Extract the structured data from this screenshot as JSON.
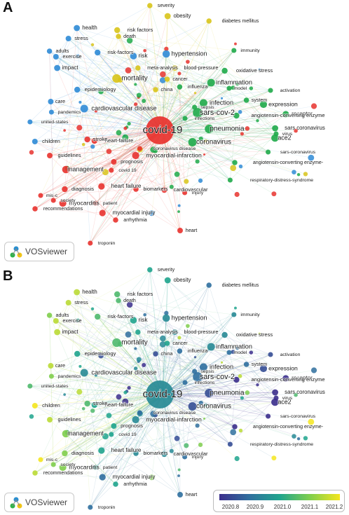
{
  "panels": [
    {
      "letter": "A",
      "mode": "cluster"
    },
    {
      "letter": "B",
      "mode": "overlay"
    }
  ],
  "brand": {
    "label": "VOSviewer"
  },
  "colorbar": {
    "ticks": [
      "2020.8",
      "2020.9",
      "2021.0",
      "2021.1",
      "2021.2"
    ],
    "stops": [
      "#3b2e8c",
      "#2f6f9e",
      "#1fa48d",
      "#7fce4d",
      "#f4e61e"
    ]
  },
  "clusters": {
    "red": "#e8322e",
    "green": "#1faa4a",
    "blue": "#2f8bd6",
    "yellow": "#d8c41a"
  },
  "keywords": [
    {
      "label": "covid-19",
      "cluster": "red",
      "year": 2020.95,
      "w": 3.0
    },
    {
      "label": "sars-cov-2",
      "cluster": "green",
      "year": 2020.9,
      "w": 2.2
    },
    {
      "label": "mortality",
      "cluster": "yellow",
      "year": 2021.05,
      "w": 1.9
    },
    {
      "label": "pneumonia",
      "cluster": "green",
      "year": 2020.85,
      "w": 1.9
    },
    {
      "label": "coronavirus",
      "cluster": "green",
      "year": 2020.85,
      "w": 1.8
    },
    {
      "label": "inflammation",
      "cluster": "green",
      "year": 2020.95,
      "w": 1.6
    },
    {
      "label": "infection",
      "cluster": "green",
      "year": 2020.9,
      "w": 1.6
    },
    {
      "label": "cardiovascular disease",
      "cluster": "blue",
      "year": 2020.95,
      "w": 1.6
    },
    {
      "label": "management",
      "cluster": "red",
      "year": 2021.1,
      "w": 1.5
    },
    {
      "label": "ace2",
      "cluster": "green",
      "year": 2020.8,
      "w": 1.5
    },
    {
      "label": "hypertension",
      "cluster": "blue",
      "year": 2020.95,
      "w": 1.5
    },
    {
      "label": "expression",
      "cluster": "green",
      "year": 2020.85,
      "w": 1.4
    },
    {
      "label": "myocarditis",
      "cluster": "red",
      "year": 2021.1,
      "w": 1.4
    },
    {
      "label": "myocardial-infarction",
      "cluster": "red",
      "year": 2020.95,
      "w": 1.4
    },
    {
      "label": "risk",
      "cluster": "blue",
      "year": 2021.0,
      "w": 1.3
    },
    {
      "label": "heart failure",
      "cluster": "red",
      "year": 2021.0,
      "w": 1.2
    },
    {
      "label": "myocardial injury",
      "cluster": "red",
      "year": 2020.9,
      "w": 1.2
    },
    {
      "label": "receptor",
      "cluster": "green",
      "year": 2020.8,
      "w": 1.2
    },
    {
      "label": "health",
      "cluster": "blue",
      "year": 2021.15,
      "w": 1.1
    },
    {
      "label": "obesity",
      "cluster": "yellow",
      "year": 2021.0,
      "w": 1.1
    },
    {
      "label": "sars coronavirus",
      "cluster": "green",
      "year": 2020.8,
      "w": 1.1
    },
    {
      "label": "impact",
      "cluster": "blue",
      "year": 2021.15,
      "w": 1.1
    },
    {
      "label": "heart-failure",
      "cluster": "red",
      "year": 2021.0,
      "w": 1.0
    },
    {
      "label": "stroke",
      "cluster": "red",
      "year": 2021.05,
      "w": 1.0
    },
    {
      "label": "risk factors",
      "cluster": "yellow",
      "year": 2021.05,
      "w": 1.0
    },
    {
      "label": "risk-factors",
      "cluster": "blue",
      "year": 2021.05,
      "w": 1.0
    },
    {
      "label": "oxidative stress",
      "cluster": "green",
      "year": 2020.95,
      "w": 1.0
    },
    {
      "label": "angiotensin-converting enzyme",
      "cluster": "green",
      "year": 2020.8,
      "w": 1.0
    },
    {
      "label": "cardiovascular",
      "cluster": "red",
      "year": 2020.95,
      "w": 1.0
    },
    {
      "label": "diagnosis",
      "cluster": "red",
      "year": 2021.1,
      "w": 1.0
    },
    {
      "label": "epidemiology",
      "cluster": "blue",
      "year": 2021.0,
      "w": 1.0
    },
    {
      "label": "stress",
      "cluster": "blue",
      "year": 2021.15,
      "w": 0.9
    },
    {
      "label": "exercise",
      "cluster": "blue",
      "year": 2021.15,
      "w": 0.9
    },
    {
      "label": "heart",
      "cluster": "red",
      "year": 2020.9,
      "w": 0.9
    },
    {
      "label": "care",
      "cluster": "blue",
      "year": 2021.15,
      "w": 0.9
    },
    {
      "label": "children",
      "cluster": "blue",
      "year": 2021.2,
      "w": 0.9
    },
    {
      "label": "guidelines",
      "cluster": "red",
      "year": 2021.15,
      "w": 0.9
    },
    {
      "label": "prognosis",
      "cluster": "red",
      "year": 2021.0,
      "w": 0.9
    },
    {
      "label": "blood-pressure",
      "cluster": "yellow",
      "year": 2020.95,
      "w": 0.9
    },
    {
      "label": "severity",
      "cluster": "yellow",
      "year": 2021.0,
      "w": 0.8
    },
    {
      "label": "diabetes mellitus",
      "cluster": "yellow",
      "year": 2020.9,
      "w": 0.8
    },
    {
      "label": "death",
      "cluster": "yellow",
      "year": 2021.05,
      "w": 0.8
    },
    {
      "label": "meta-analysis",
      "cluster": "yellow",
      "year": 2021.0,
      "w": 0.8
    },
    {
      "label": "cancer",
      "cluster": "yellow",
      "year": 2021.0,
      "w": 0.8
    },
    {
      "label": "immunity",
      "cluster": "green",
      "year": 2020.95,
      "w": 0.7
    },
    {
      "label": "adults",
      "cluster": "blue",
      "year": 2021.1,
      "w": 0.8
    },
    {
      "label": "influenza",
      "cluster": "green",
      "year": 2020.9,
      "w": 0.8
    },
    {
      "label": "china",
      "cluster": "yellow",
      "year": 2020.85,
      "w": 0.8
    },
    {
      "label": "activation",
      "cluster": "green",
      "year": 2020.85,
      "w": 0.7
    },
    {
      "label": "system",
      "cluster": "green",
      "year": 2020.9,
      "w": 0.8
    },
    {
      "label": "model",
      "cluster": "green",
      "year": 2020.9,
      "w": 0.7
    },
    {
      "label": "pandemics",
      "cluster": "blue",
      "year": 2021.1,
      "w": 0.7
    },
    {
      "label": "sepsis",
      "cluster": "green",
      "year": 2020.9,
      "w": 0.7
    },
    {
      "label": "united-states",
      "cluster": "blue",
      "year": 2021.05,
      "w": 0.7
    },
    {
      "label": "infections",
      "cluster": "green",
      "year": 2020.9,
      "w": 0.7
    },
    {
      "label": "virus",
      "cluster": "green",
      "year": 2020.8,
      "w": 0.7
    },
    {
      "label": "coronavirus disease",
      "cluster": "red",
      "year": 2020.9,
      "w": 0.7
    },
    {
      "label": "covid 19",
      "cluster": "red",
      "year": 2021.0,
      "w": 0.7
    },
    {
      "label": "sars-coronavirus",
      "cluster": "green",
      "year": 2020.8,
      "w": 0.7
    },
    {
      "label": "angiotensin-converting enzyme-",
      "cluster": "green",
      "year": 2020.8,
      "w": 0.8
    },
    {
      "label": "biomarkers",
      "cluster": "red",
      "year": 2020.95,
      "w": 0.8
    },
    {
      "label": "injury",
      "cluster": "red",
      "year": 2020.9,
      "w": 0.7
    },
    {
      "label": "respiratory-distress-syndrome",
      "cluster": "green",
      "year": 2020.85,
      "w": 0.7
    },
    {
      "label": "mis-c",
      "cluster": "red",
      "year": 2021.2,
      "w": 0.7
    },
    {
      "label": "society",
      "cluster": "red",
      "year": 2021.1,
      "w": 0.7
    },
    {
      "label": "recommendations",
      "cluster": "red",
      "year": 2021.15,
      "w": 0.8
    },
    {
      "label": "patient",
      "cluster": "red",
      "year": 2021.0,
      "w": 0.7
    },
    {
      "label": "arrhythmia",
      "cluster": "red",
      "year": 2021.0,
      "w": 0.8
    },
    {
      "label": "troponin",
      "cluster": "red",
      "year": 2020.9,
      "w": 0.7
    }
  ]
}
